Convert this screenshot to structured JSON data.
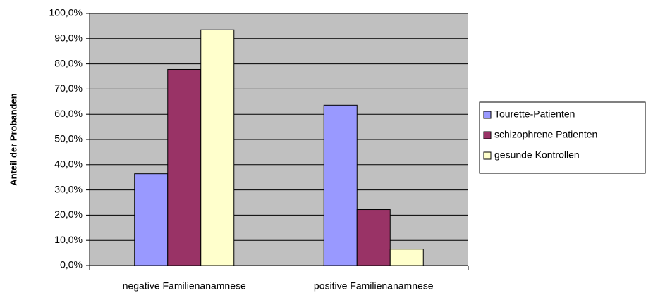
{
  "chart_data": {
    "type": "bar",
    "y_label": "Anteil der Probanden",
    "categories": [
      "negative Familienanamnese",
      "positive Familienanamnese"
    ],
    "series": [
      {
        "name": "Tourette-Patienten",
        "color": "#9999ff",
        "values": [
          36.4,
          63.6
        ]
      },
      {
        "name": "schizophrene Patienten",
        "color": "#993366",
        "values": [
          77.8,
          22.2
        ]
      },
      {
        "name": "gesunde Kontrollen",
        "color": "#ffffcc",
        "values": [
          93.5,
          6.5
        ]
      }
    ],
    "ylim": [
      0,
      100
    ],
    "yticks": [
      {
        "value": 0,
        "label": "0,0%"
      },
      {
        "value": 10,
        "label": "10,0%"
      },
      {
        "value": 20,
        "label": "20,0%"
      },
      {
        "value": 30,
        "label": "30,0%"
      },
      {
        "value": 40,
        "label": "40,0%"
      },
      {
        "value": 50,
        "label": "50,0%"
      },
      {
        "value": 60,
        "label": "60,0%"
      },
      {
        "value": 70,
        "label": "70,0%"
      },
      {
        "value": 80,
        "label": "80,0%"
      },
      {
        "value": 90,
        "label": "90,0%"
      },
      {
        "value": 100,
        "label": "100,0%"
      }
    ],
    "grid": true,
    "legend": "right"
  }
}
